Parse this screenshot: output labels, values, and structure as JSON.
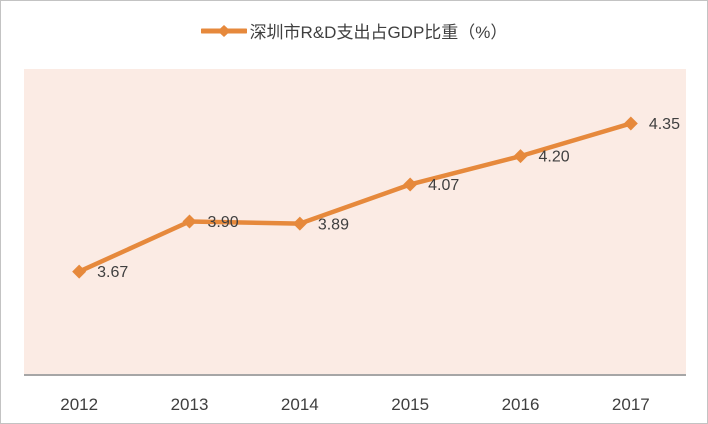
{
  "legend": {
    "label": "深圳市R&D支出占GDP比重（%）",
    "marker_icon": "diamond-line-icon"
  },
  "chart_data": {
    "type": "line",
    "title": "深圳市R&D支出占GDP比重（%）",
    "categories": [
      "2012",
      "2013",
      "2014",
      "2015",
      "2016",
      "2017"
    ],
    "series": [
      {
        "name": "深圳市R&D支出占GDP比重（%）",
        "values": [
          3.67,
          3.9,
          3.89,
          4.07,
          4.2,
          4.35
        ]
      }
    ],
    "data_labels": [
      "3.67",
      "3.90",
      "3.89",
      "4.07",
      "4.20",
      "4.35"
    ],
    "xlabel": "",
    "ylabel": "",
    "ylim": [
      3.2,
      4.6
    ],
    "grid": false,
    "legend_position": "top",
    "marker_shape": "diamond",
    "colors": {
      "line": "#e6893c",
      "marker": "#e6893c",
      "plot_background": "#fbebe4",
      "axis_line": "#a6a6a6",
      "label_text": "#3f3f3f",
      "outer_border": "#c3c3c3"
    }
  }
}
